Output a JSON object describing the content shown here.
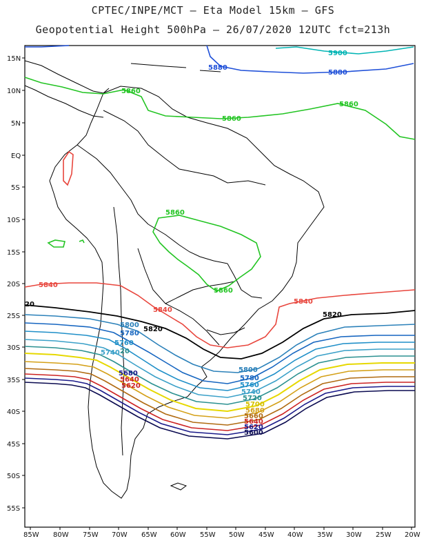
{
  "title": {
    "line1": "CPTEC/INPE/MCT –  Eta Model 15km – GFS",
    "line2": "Geopotential Height 500hPa – 26/07/2020 12UTC fct=213h"
  },
  "axes": {
    "lat_labels": [
      "15N",
      "10N",
      "5N",
      "EQ",
      "5S",
      "10S",
      "15S",
      "20S",
      "25S",
      "30S",
      "35S",
      "40S",
      "45S",
      "50S",
      "55S"
    ],
    "lon_labels": [
      "85W",
      "80W",
      "75W",
      "70W",
      "65W",
      "60W",
      "55W",
      "50W",
      "45W",
      "40W",
      "35W",
      "30W",
      "25W",
      "20W"
    ]
  },
  "colors": {
    "c5900": "#00b4b4",
    "c5880": "#1e4fd8",
    "c5860": "#22c422",
    "c5840": "#e8453c",
    "c5820": "#000000",
    "c5800": "#2a80b9",
    "c5780": "#1565c0",
    "c5760": "#1f8fc8",
    "c5740": "#3aa0c8",
    "c5720": "#2a9090",
    "c5700": "#e6d800",
    "c5680": "#d4a017",
    "c5660": "#b06a10",
    "c5640": "#cc2222",
    "c5620": "#1a1a8a",
    "c5600": "#0a0a50"
  },
  "contour_labels": {
    "l5900": "5900",
    "l5880": "5880",
    "l5860": "5860",
    "l5840": "5840",
    "l5820": "5820",
    "l5800": "5800",
    "l5780": "5780",
    "l5760": "5760",
    "l5740": "5740",
    "l5720": "5720",
    "l5700": "5700",
    "l5680": "5680",
    "l5660": "5660",
    "l5640": "5640",
    "l5620": "5620",
    "l5600": "5600",
    "l20": "20"
  }
}
